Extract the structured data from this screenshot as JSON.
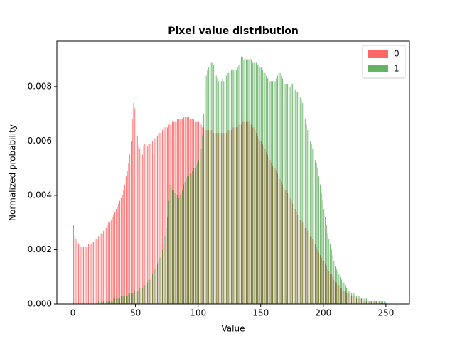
{
  "chart_data": {
    "type": "histogram",
    "title": "Pixel value distribution",
    "xlabel": "Value",
    "ylabel": "Normalized probability",
    "bins": [
      0,
      1,
      2,
      3,
      4,
      5,
      6,
      7,
      8,
      9,
      10,
      11,
      12,
      13,
      14,
      15,
      16,
      17,
      18,
      19,
      20,
      21,
      22,
      23,
      24,
      25,
      26,
      27,
      28,
      29,
      30,
      31,
      32,
      33,
      34,
      35,
      36,
      37,
      38,
      39,
      40,
      41,
      42,
      43,
      44,
      45,
      46,
      47,
      48,
      49,
      50,
      51,
      52,
      53,
      54,
      55,
      56,
      57,
      58,
      59,
      60,
      61,
      62,
      63,
      64,
      65,
      66,
      67,
      68,
      69,
      70,
      71,
      72,
      73,
      74,
      75,
      76,
      77,
      78,
      79,
      80,
      81,
      82,
      83,
      84,
      85,
      86,
      87,
      88,
      89,
      90,
      91,
      92,
      93,
      94,
      95,
      96,
      97,
      98,
      99,
      100,
      101,
      102,
      103,
      104,
      105,
      106,
      107,
      108,
      109,
      110,
      111,
      112,
      113,
      114,
      115,
      116,
      117,
      118,
      119,
      120,
      121,
      122,
      123,
      124,
      125,
      126,
      127,
      128,
      129,
      130,
      131,
      132,
      133,
      134,
      135,
      136,
      137,
      138,
      139,
      140,
      141,
      142,
      143,
      144,
      145,
      146,
      147,
      148,
      149,
      150,
      151,
      152,
      153,
      154,
      155,
      156,
      157,
      158,
      159,
      160,
      161,
      162,
      163,
      164,
      165,
      166,
      167,
      168,
      169,
      170,
      171,
      172,
      173,
      174,
      175,
      176,
      177,
      178,
      179,
      180,
      181,
      182,
      183,
      184,
      185,
      186,
      187,
      188,
      189,
      190,
      191,
      192,
      193,
      194,
      195,
      196,
      197,
      198,
      199,
      200,
      201,
      202,
      203,
      204,
      205,
      206,
      207,
      208,
      209,
      210,
      211,
      212,
      213,
      214,
      215,
      216,
      217,
      218,
      219,
      220,
      221,
      222,
      223,
      224,
      225,
      226,
      227,
      228,
      229,
      230,
      231,
      232,
      233,
      234,
      235,
      236,
      237,
      238,
      239,
      240,
      241,
      242,
      243,
      244,
      245,
      246,
      247,
      248,
      249,
      250,
      251,
      252,
      253,
      254,
      255,
      256
    ],
    "series": [
      {
        "name": "0",
        "color": "#ff0000",
        "values": [
          0.0029,
          0.0025,
          0.0024,
          0.0023,
          0.0022,
          0.0022,
          0.0021,
          0.0021,
          0.0021,
          0.0021,
          0.0021,
          0.0021,
          0.0022,
          0.0022,
          0.0022,
          0.0023,
          0.0023,
          0.0023,
          0.0024,
          0.0024,
          0.0025,
          0.0025,
          0.0026,
          0.0026,
          0.0027,
          0.0028,
          0.0028,
          0.0029,
          0.003,
          0.003,
          0.0031,
          0.0032,
          0.0033,
          0.0034,
          0.0035,
          0.0036,
          0.0037,
          0.0038,
          0.0039,
          0.004,
          0.0042,
          0.0044,
          0.0047,
          0.0049,
          0.0052,
          0.0055,
          0.006,
          0.0068,
          0.0074,
          0.0072,
          0.0065,
          0.0062,
          0.0058,
          0.0057,
          0.0056,
          0.0055,
          0.0058,
          0.0059,
          0.0059,
          0.0058,
          0.0059,
          0.0059,
          0.006,
          0.006,
          0.0055,
          0.0061,
          0.0062,
          0.0062,
          0.0063,
          0.0063,
          0.0063,
          0.0064,
          0.0064,
          0.0065,
          0.0065,
          0.0065,
          0.0066,
          0.0066,
          0.0066,
          0.0067,
          0.0067,
          0.0067,
          0.0067,
          0.0068,
          0.0068,
          0.0068,
          0.0068,
          0.0068,
          0.0069,
          0.0069,
          0.0069,
          0.0069,
          0.0069,
          0.0068,
          0.0068,
          0.0068,
          0.0068,
          0.0067,
          0.0067,
          0.0067,
          0.0067,
          0.0066,
          0.0066,
          0.0065,
          0.0065,
          0.0064,
          0.0064,
          0.0064,
          0.0064,
          0.0064,
          0.0064,
          0.0064,
          0.0063,
          0.0063,
          0.0063,
          0.0063,
          0.0063,
          0.0063,
          0.0063,
          0.0063,
          0.0063,
          0.0063,
          0.0063,
          0.0064,
          0.0064,
          0.0064,
          0.0064,
          0.0065,
          0.0065,
          0.0065,
          0.0065,
          0.0065,
          0.0066,
          0.0066,
          0.0066,
          0.0067,
          0.0067,
          0.0067,
          0.0067,
          0.0067,
          0.0067,
          0.0066,
          0.0066,
          0.0065,
          0.0065,
          0.0064,
          0.0063,
          0.0062,
          0.0061,
          0.006,
          0.006,
          0.0059,
          0.0058,
          0.0057,
          0.0056,
          0.0055,
          0.0054,
          0.0053,
          0.0052,
          0.0051,
          0.0051,
          0.005,
          0.0049,
          0.0048,
          0.0047,
          0.0046,
          0.0045,
          0.0044,
          0.0043,
          0.0042,
          0.0042,
          0.0041,
          0.004,
          0.0039,
          0.0038,
          0.0037,
          0.0036,
          0.0035,
          0.0034,
          0.0033,
          0.0032,
          0.0031,
          0.0031,
          0.003,
          0.0029,
          0.0028,
          0.0028,
          0.0027,
          0.0026,
          0.0025,
          0.0025,
          0.0024,
          0.0023,
          0.0022,
          0.0021,
          0.002,
          0.0019,
          0.0018,
          0.0017,
          0.0016,
          0.0016,
          0.0015,
          0.0014,
          0.0013,
          0.0012,
          0.0011,
          0.0011,
          0.001,
          0.0009,
          0.0008,
          0.0008,
          0.0007,
          0.0007,
          0.0006,
          0.0006,
          0.0005,
          0.0005,
          0.0005,
          0.0004,
          0.0004,
          0.0004,
          0.0003,
          0.0003,
          0.0003,
          0.0003,
          0.0002,
          0.0002,
          0.0002,
          0.0002,
          0.0002,
          0.0002,
          0.0002,
          0.0001,
          0.0001,
          0.0001,
          0.0001,
          0.0001,
          0.0001,
          0.0001,
          0.0001,
          0.0001,
          0.0001,
          0.0001,
          0.0001,
          0.0001,
          5e-05,
          5e-05,
          5e-05,
          5e-05,
          5e-05,
          5e-05,
          0,
          0,
          0,
          0,
          0
        ]
      },
      {
        "name": "1",
        "color": "#008000",
        "values": [
          0,
          0,
          0,
          0,
          0,
          0,
          0,
          0,
          0,
          0,
          0,
          0,
          0,
          0,
          0,
          0,
          0,
          0,
          0,
          0,
          0.0001,
          0.0001,
          0.0001,
          0.0001,
          0.0001,
          0.0001,
          0.0001,
          0.0001,
          0.0001,
          0.0001,
          0.0001,
          0.0001,
          0.0002,
          0.0002,
          0.0002,
          0.0002,
          0.0002,
          0.0002,
          0.0003,
          0.0003,
          0.0003,
          0.0003,
          0.0003,
          0.0003,
          0.0004,
          0.0004,
          0.0004,
          0.0004,
          0.0004,
          0.0005,
          0.0005,
          0.0005,
          0.0005,
          0.0006,
          0.0006,
          0.0006,
          0.0007,
          0.0007,
          0.0008,
          0.0008,
          0.0009,
          0.0009,
          0.001,
          0.0011,
          0.0012,
          0.0013,
          0.0014,
          0.0015,
          0.0016,
          0.0017,
          0.0018,
          0.002,
          0.0022,
          0.0025,
          0.0028,
          0.0032,
          0.0038,
          0.0044,
          0.0044,
          0.0042,
          0.0042,
          0.0041,
          0.004,
          0.004,
          0.0039,
          0.004,
          0.0041,
          0.0042,
          0.0044,
          0.0045,
          0.0046,
          0.0047,
          0.0047,
          0.0048,
          0.0048,
          0.0049,
          0.005,
          0.005,
          0.0051,
          0.0052,
          0.0053,
          0.0054,
          0.0057,
          0.0062,
          0.007,
          0.008,
          0.0084,
          0.0086,
          0.0087,
          0.0088,
          0.0089,
          0.0089,
          0.0088,
          0.0086,
          0.0084,
          0.0083,
          0.0082,
          0.0082,
          0.0082,
          0.0083,
          0.0082,
          0.0084,
          0.0084,
          0.0085,
          0.0085,
          0.0085,
          0.0086,
          0.0086,
          0.0086,
          0.0087,
          0.0086,
          0.0087,
          0.0088,
          0.009,
          0.0091,
          0.0091,
          0.009,
          0.0091,
          0.009,
          0.009,
          0.009,
          0.0091,
          0.009,
          0.0089,
          0.0089,
          0.0089,
          0.0089,
          0.0088,
          0.0088,
          0.0087,
          0.0087,
          0.0086,
          0.0085,
          0.0085,
          0.0084,
          0.0083,
          0.0083,
          0.0082,
          0.0082,
          0.0082,
          0.0082,
          0.0082,
          0.0083,
          0.0084,
          0.0085,
          0.0085,
          0.0084,
          0.0083,
          0.0082,
          0.0081,
          0.0081,
          0.0081,
          0.0081,
          0.008,
          0.0081,
          0.0081,
          0.008,
          0.0079,
          0.0078,
          0.0078,
          0.0077,
          0.0076,
          0.0075,
          0.0074,
          0.0072,
          0.0068,
          0.0066,
          0.0064,
          0.0062,
          0.006,
          0.0059,
          0.0057,
          0.0055,
          0.0053,
          0.0052,
          0.005,
          0.0047,
          0.0044,
          0.0041,
          0.0038,
          0.0035,
          0.0032,
          0.0029,
          0.0026,
          0.0024,
          0.0022,
          0.002,
          0.0018,
          0.0016,
          0.0014,
          0.0013,
          0.0012,
          0.0011,
          0.001,
          0.0009,
          0.0008,
          0.0008,
          0.0007,
          0.0006,
          0.0006,
          0.0005,
          0.0005,
          0.0004,
          0.0004,
          0.0004,
          0.0003,
          0.0003,
          0.0003,
          0.0003,
          0.0002,
          0.0002,
          0.0002,
          0.0002,
          0.0002,
          0.0002,
          0.0001,
          0.0001,
          0.0001,
          0.0001,
          0.0001,
          0.0001,
          0.0001,
          0.0001,
          0.0001,
          0.0001,
          0.0001,
          0.0001,
          0.0001,
          0.0001,
          0.0001,
          0,
          0,
          0,
          0,
          0,
          0
        ]
      }
    ],
    "xlim": [
      -12.8,
      268.8
    ],
    "xticks": [
      0,
      50,
      100,
      150,
      200,
      250
    ],
    "ylim": [
      0,
      0.00967
    ],
    "yticks": [
      {
        "value": 0,
        "label": "0.000"
      },
      {
        "value": 0.002,
        "label": "0.002"
      },
      {
        "value": 0.004,
        "label": "0.004"
      },
      {
        "value": 0.006,
        "label": "0.006"
      },
      {
        "value": 0.008,
        "label": "0.008"
      }
    ],
    "legend": "upper right"
  }
}
